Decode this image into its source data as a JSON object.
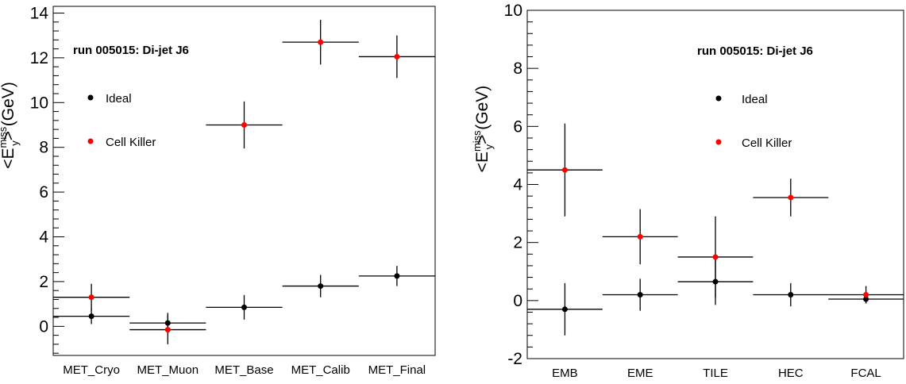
{
  "colors": {
    "ideal": "#000000",
    "cell_killer": "#ff0000",
    "frame": "#000000"
  },
  "chart_data": [
    {
      "type": "scatter",
      "title": "run 005015: Di-jet J6",
      "ylabel_prefix": "<E",
      "ylabel_sup": "miss",
      "ylabel_sub": "y",
      "ylabel_suffix": "> (GeV)",
      "ylim": [
        -1.3,
        14.3
      ],
      "yticks": [
        0,
        2,
        4,
        6,
        8,
        10,
        12,
        14
      ],
      "ytick_labels": [
        "0",
        "2",
        "4",
        "6",
        "8",
        "10",
        "12",
        "14"
      ],
      "categories": [
        "MET_Cryo",
        "MET_Muon",
        "MET_Base",
        "MET_Calib",
        "MET_Final"
      ],
      "series": [
        {
          "name": "Ideal",
          "color": "#000000",
          "values": [
            0.45,
            0.15,
            0.85,
            1.8,
            2.25
          ],
          "errors": [
            0.35,
            0.45,
            0.55,
            0.5,
            0.45
          ]
        },
        {
          "name": "Cell Killer",
          "color": "#ff0000",
          "values": [
            1.3,
            -0.15,
            9.0,
            12.7,
            12.05
          ],
          "errors": [
            0.6,
            0.65,
            1.05,
            1.0,
            0.95
          ]
        }
      ]
    },
    {
      "type": "scatter",
      "title": "run 005015: Di-jet J6",
      "ylabel_prefix": "<E",
      "ylabel_sup": "miss",
      "ylabel_sub": "y",
      "ylabel_suffix": "> (GeV)",
      "ylim": [
        -2,
        10
      ],
      "yticks": [
        -2,
        0,
        2,
        4,
        6,
        8,
        10
      ],
      "ytick_labels": [
        "-2",
        "0",
        "2",
        "4",
        "6",
        "8",
        "10"
      ],
      "categories": [
        "EMB",
        "EME",
        "TILE",
        "HEC",
        "FCAL"
      ],
      "series": [
        {
          "name": "Ideal",
          "color": "#000000",
          "values": [
            -0.3,
            0.2,
            0.65,
            0.2,
            0.05
          ],
          "errors": [
            0.9,
            0.55,
            0.8,
            0.4,
            0.15
          ]
        },
        {
          "name": "Cell Killer",
          "color": "#ff0000",
          "values": [
            4.5,
            2.2,
            1.5,
            3.55,
            0.2
          ],
          "errors": [
            1.6,
            0.95,
            1.4,
            0.65,
            0.3
          ]
        }
      ]
    }
  ]
}
